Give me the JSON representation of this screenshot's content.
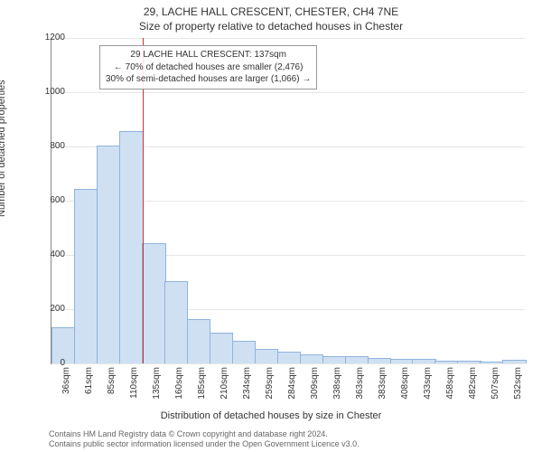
{
  "title_line1": "29, LACHE HALL CRESCENT, CHESTER, CH4 7NE",
  "title_line2": "Size of property relative to detached houses in Chester",
  "y_axis_label": "Number of detached properties",
  "x_axis_label": "Distribution of detached houses by size in Chester",
  "chart": {
    "type": "histogram",
    "ylim_max": 1200,
    "y_ticks": [
      0,
      200,
      400,
      600,
      800,
      1000,
      1200
    ],
    "grid_color": "#e6e6e6",
    "bar_fill": "#cfe0f3",
    "bar_stroke": "#8fb4db",
    "marker_color": "#cc3333",
    "marker_x_value": 137,
    "background_color": "#ffffff",
    "x_categories": [
      "36sqm",
      "61sqm",
      "85sqm",
      "110sqm",
      "135sqm",
      "160sqm",
      "185sqm",
      "210sqm",
      "234sqm",
      "259sqm",
      "284sqm",
      "309sqm",
      "338sqm",
      "363sqm",
      "383sqm",
      "408sqm",
      "433sqm",
      "458sqm",
      "482sqm",
      "507sqm",
      "532sqm"
    ],
    "x_start": 36,
    "x_step": 25,
    "values": [
      130,
      640,
      800,
      855,
      440,
      300,
      160,
      110,
      80,
      50,
      40,
      30,
      25,
      22,
      18,
      15,
      12,
      8,
      6,
      5,
      10
    ]
  },
  "annotation": {
    "line1": "29 LACHE HALL CRESCENT: 137sqm",
    "line2": "← 70% of detached houses are smaller (2,476)",
    "line3": "30% of semi-detached houses are larger (1,066) →"
  },
  "footer": {
    "line1": "Contains HM Land Registry data © Crown copyright and database right 2024.",
    "line2": "Contains public sector information licensed under the Open Government Licence v3.0."
  }
}
